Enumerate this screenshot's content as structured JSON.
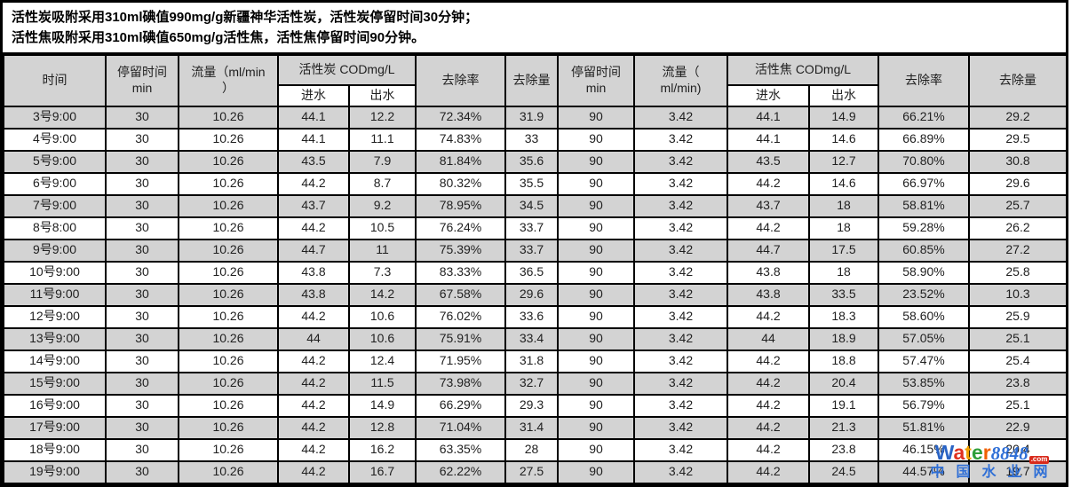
{
  "notes": {
    "line1": "活性炭吸附采用310ml碘值990mg/g新疆神华活性炭，活性炭停留时间30分钟；",
    "line2": "活性焦吸附采用310ml碘值650mg/g活性焦，活性焦停留时间90分钟。"
  },
  "table": {
    "headers": {
      "time": "时间",
      "left": {
        "retention": "停留时间\nmin",
        "flow": "流量（ml/min\n）",
        "cod_group": "活性炭 CODmg/L",
        "influent": "进水",
        "effluent": "出水",
        "removal_rate": "去除率",
        "removal_amount": "去除量"
      },
      "right": {
        "retention": "停留时间\nmin",
        "flow": "流量（\nml/min)",
        "cod_group": "活性焦 CODmg/L",
        "influent": "进水",
        "effluent": "出水",
        "removal_rate": "去除率",
        "removal_amount": "去除量"
      }
    },
    "rows": [
      [
        "3号9:00",
        "30",
        "10.26",
        "44.1",
        "12.2",
        "72.34%",
        "31.9",
        "90",
        "3.42",
        "44.1",
        "14.9",
        "66.21%",
        "29.2"
      ],
      [
        "4号9:00",
        "30",
        "10.26",
        "44.1",
        "11.1",
        "74.83%",
        "33",
        "90",
        "3.42",
        "44.1",
        "14.6",
        "66.89%",
        "29.5"
      ],
      [
        "5号9:00",
        "30",
        "10.26",
        "43.5",
        "7.9",
        "81.84%",
        "35.6",
        "90",
        "3.42",
        "43.5",
        "12.7",
        "70.80%",
        "30.8"
      ],
      [
        "6号9:00",
        "30",
        "10.26",
        "44.2",
        "8.7",
        "80.32%",
        "35.5",
        "90",
        "3.42",
        "44.2",
        "14.6",
        "66.97%",
        "29.6"
      ],
      [
        "7号9:00",
        "30",
        "10.26",
        "43.7",
        "9.2",
        "78.95%",
        "34.5",
        "90",
        "3.42",
        "43.7",
        "18",
        "58.81%",
        "25.7"
      ],
      [
        "8号8:00",
        "30",
        "10.26",
        "44.2",
        "10.5",
        "76.24%",
        "33.7",
        "90",
        "3.42",
        "44.2",
        "18",
        "59.28%",
        "26.2"
      ],
      [
        "9号9:00",
        "30",
        "10.26",
        "44.7",
        "11",
        "75.39%",
        "33.7",
        "90",
        "3.42",
        "44.7",
        "17.5",
        "60.85%",
        "27.2"
      ],
      [
        "10号9:00",
        "30",
        "10.26",
        "43.8",
        "7.3",
        "83.33%",
        "36.5",
        "90",
        "3.42",
        "43.8",
        "18",
        "58.90%",
        "25.8"
      ],
      [
        "11号9:00",
        "30",
        "10.26",
        "43.8",
        "14.2",
        "67.58%",
        "29.6",
        "90",
        "3.42",
        "43.8",
        "33.5",
        "23.52%",
        "10.3"
      ],
      [
        "12号9:00",
        "30",
        "10.26",
        "44.2",
        "10.6",
        "76.02%",
        "33.6",
        "90",
        "3.42",
        "44.2",
        "18.3",
        "58.60%",
        "25.9"
      ],
      [
        "13号9:00",
        "30",
        "10.26",
        "44",
        "10.6",
        "75.91%",
        "33.4",
        "90",
        "3.42",
        "44",
        "18.9",
        "57.05%",
        "25.1"
      ],
      [
        "14号9:00",
        "30",
        "10.26",
        "44.2",
        "12.4",
        "71.95%",
        "31.8",
        "90",
        "3.42",
        "44.2",
        "18.8",
        "57.47%",
        "25.4"
      ],
      [
        "15号9:00",
        "30",
        "10.26",
        "44.2",
        "11.5",
        "73.98%",
        "32.7",
        "90",
        "3.42",
        "44.2",
        "20.4",
        "53.85%",
        "23.8"
      ],
      [
        "16号9:00",
        "30",
        "10.26",
        "44.2",
        "14.9",
        "66.29%",
        "29.3",
        "90",
        "3.42",
        "44.2",
        "19.1",
        "56.79%",
        "25.1"
      ],
      [
        "17号9:00",
        "30",
        "10.26",
        "44.2",
        "12.8",
        "71.04%",
        "31.4",
        "90",
        "3.42",
        "44.2",
        "21.3",
        "51.81%",
        "22.9"
      ],
      [
        "18号9:00",
        "30",
        "10.26",
        "44.2",
        "16.2",
        "63.35%",
        "28",
        "90",
        "3.42",
        "44.2",
        "23.8",
        "46.15%",
        "20.4"
      ],
      [
        "19号9:00",
        "30",
        "10.26",
        "44.2",
        "16.7",
        "62.22%",
        "27.5",
        "90",
        "3.42",
        "44.2",
        "24.5",
        "44.57%",
        "19.7"
      ]
    ]
  },
  "watermark": {
    "brand_letters": [
      {
        "ch": "W",
        "color": "#2a64c5"
      },
      {
        "ch": "a",
        "color": "#e0301e"
      },
      {
        "ch": "t",
        "color": "#f2a000"
      },
      {
        "ch": "e",
        "color": "#2e9e39"
      },
      {
        "ch": "r",
        "color": "#f06000"
      }
    ],
    "brand_number": "8848",
    "brand_suffix": ".com",
    "site_name": "中国水业网"
  },
  "colors": {
    "header_bg": "#d3d3d3",
    "row_alt_bg": "#d3d3d3",
    "row_bg": "#ffffff",
    "border": "#000000",
    "brand_blue": "#2f6fd6",
    "brand_red": "#d92b1c"
  }
}
